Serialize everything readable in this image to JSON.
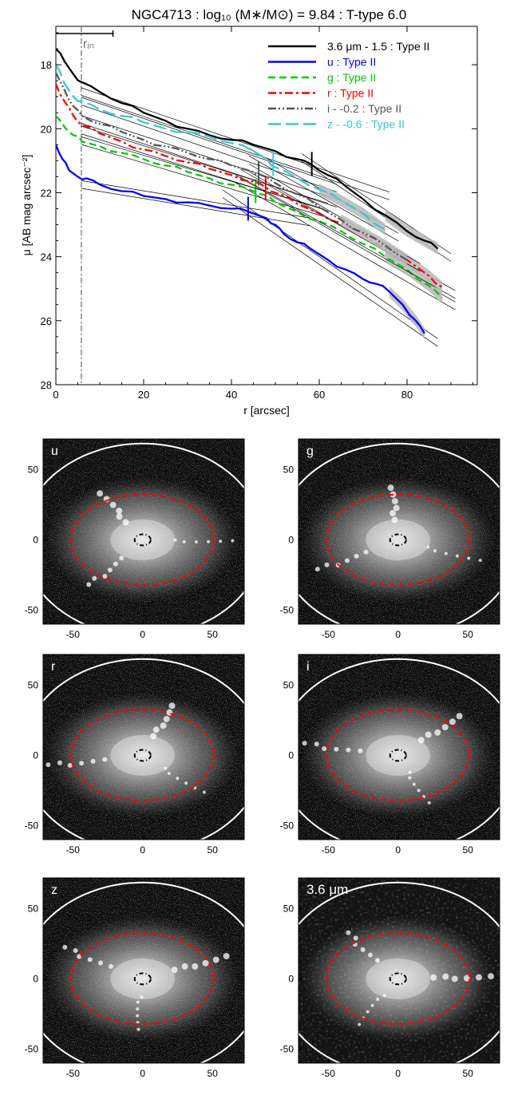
{
  "chart_data": [
    {
      "type": "line",
      "title": "NGC4713 : log₁₀ (M∗/M⊙) = 9.84 : T-type 6.0",
      "xlabel": "r [arcsec]",
      "ylabel": "μ [AB mag arcsec⁻²]",
      "xlim": [
        0,
        96
      ],
      "ylim": [
        28,
        16.8
      ],
      "y_inverted": true,
      "x_ticks": [
        0,
        20,
        40,
        60,
        80
      ],
      "y_ticks": [
        18,
        20,
        22,
        24,
        26,
        28
      ],
      "grid": false,
      "legend_position": "top-right",
      "r_in": 5.8,
      "r_in_label": "rᵢₙ",
      "r_in_bar": [
        0,
        13
      ],
      "series": [
        {
          "name": "3.6 μm - 1.5 : Type II",
          "color": "#000000",
          "dash": "solid",
          "x": [
            0,
            2,
            4,
            6,
            10,
            15,
            20,
            25,
            30,
            35,
            40,
            45,
            50,
            55,
            58,
            62,
            66,
            70,
            75,
            80,
            84,
            87
          ],
          "y": [
            17.5,
            17.9,
            18.3,
            18.55,
            18.85,
            19.2,
            19.5,
            19.75,
            20.0,
            20.2,
            20.35,
            20.5,
            20.7,
            20.95,
            21.1,
            21.45,
            21.8,
            22.2,
            22.7,
            23.2,
            23.5,
            23.75
          ],
          "break_r": 58.3,
          "break_mu": 21.1
        },
        {
          "name": "u : Type II",
          "color": "#0000ff",
          "dash": "solid",
          "x": [
            0,
            1.5,
            3,
            5,
            7,
            10,
            15,
            20,
            25,
            30,
            35,
            40,
            44,
            48,
            50,
            52,
            55,
            58,
            62,
            66,
            70,
            73,
            76,
            79,
            82,
            84
          ],
          "y": [
            20.5,
            20.95,
            21.3,
            21.5,
            21.55,
            21.75,
            21.95,
            22.1,
            22.2,
            22.3,
            22.4,
            22.5,
            22.6,
            22.8,
            23.0,
            23.3,
            23.55,
            23.75,
            24.1,
            24.4,
            24.7,
            24.85,
            25.1,
            25.5,
            26.0,
            26.4
          ],
          "break_r": 43.8,
          "break_mu": 22.5
        },
        {
          "name": "g : Type II",
          "color": "#00cc00",
          "dash": "dashed",
          "x": [
            0,
            2,
            4,
            6,
            10,
            15,
            20,
            25,
            30,
            35,
            40,
            45,
            47,
            50,
            55,
            60,
            65,
            70,
            75,
            80,
            85,
            88
          ],
          "y": [
            19.6,
            19.95,
            20.2,
            20.4,
            20.55,
            20.75,
            20.95,
            21.15,
            21.35,
            21.55,
            21.75,
            21.95,
            22.05,
            22.3,
            22.6,
            22.9,
            23.2,
            23.6,
            24.0,
            24.4,
            24.9,
            25.3
          ],
          "break_r": 45.5,
          "break_mu": 21.95
        },
        {
          "name": "r : Type II",
          "color": "#ff0000",
          "dash": "dashdot",
          "x": [
            0,
            2,
            4,
            6,
            10,
            15,
            20,
            25,
            30,
            35,
            40,
            45,
            48,
            50,
            55,
            60,
            65,
            70,
            75,
            80,
            85,
            88
          ],
          "y": [
            18.6,
            19.15,
            19.6,
            19.9,
            20.15,
            20.4,
            20.65,
            20.85,
            21.05,
            21.25,
            21.45,
            21.65,
            21.85,
            22.0,
            22.35,
            22.65,
            22.95,
            23.3,
            23.75,
            24.1,
            24.6,
            24.95
          ],
          "break_r": 47.8,
          "break_mu": 21.85
        },
        {
          "name": "i - -0.2 : Type II",
          "color": "#555555",
          "dash": "dashdotdot",
          "x": [
            0,
            2,
            4,
            6,
            10,
            15,
            20,
            25,
            30,
            35,
            40,
            45,
            46,
            50,
            55,
            60,
            65,
            70,
            75,
            80
          ],
          "y": [
            18.25,
            18.8,
            19.3,
            19.6,
            19.85,
            20.1,
            20.35,
            20.55,
            20.75,
            20.95,
            21.15,
            21.35,
            21.4,
            21.7,
            22.05,
            22.45,
            22.85,
            23.25,
            23.65,
            24.1
          ],
          "break_r": 46.2,
          "break_mu": 21.4
        },
        {
          "name": "z - -0.6 : Type II",
          "color": "#33cccc",
          "dash": "longdash",
          "x": [
            0,
            2,
            4,
            6,
            10,
            15,
            20,
            25,
            30,
            35,
            40,
            45,
            48,
            50,
            55,
            60,
            65,
            70,
            75
          ],
          "y": [
            18.0,
            18.6,
            19.0,
            19.15,
            19.4,
            19.6,
            19.8,
            20.0,
            20.1,
            20.25,
            20.45,
            20.7,
            20.95,
            21.2,
            21.55,
            21.9,
            22.25,
            22.65,
            23.15
          ],
          "break_r": 49.5,
          "break_mu": 21.1
        }
      ]
    },
    {
      "type": "image_panels",
      "panels": [
        {
          "label": "u",
          "x_ticks": [
            -50,
            0,
            50
          ],
          "y_ticks": [
            50,
            0,
            -50
          ]
        },
        {
          "label": "g",
          "x_ticks": [
            -50,
            0,
            50
          ],
          "y_ticks": [
            50,
            0,
            -50
          ]
        },
        {
          "label": "r",
          "x_ticks": [
            -50,
            0,
            50
          ],
          "y_ticks": [
            50,
            0,
            -50
          ]
        },
        {
          "label": "i",
          "x_ticks": [
            -50,
            0,
            50
          ],
          "y_ticks": [
            50,
            0,
            -50
          ]
        },
        {
          "label": "z",
          "x_ticks": [
            -50,
            0,
            50
          ],
          "y_ticks": [
            50,
            0,
            -50
          ]
        },
        {
          "label": "3.6 μm",
          "x_ticks": [
            -50,
            0,
            50
          ],
          "y_ticks": [
            50,
            0,
            -50
          ]
        }
      ],
      "ellipse_colors": {
        "outer": "#ffffff",
        "break": "#ff0000",
        "inner": "#000000"
      }
    }
  ]
}
